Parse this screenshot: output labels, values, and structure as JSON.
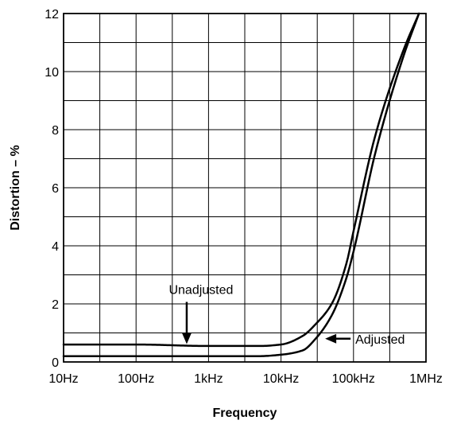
{
  "chart_data": {
    "type": "line",
    "title": "",
    "xlabel": "Frequency",
    "ylabel": "Distortion – %",
    "x_scale": "log",
    "xlim": [
      10,
      1000000
    ],
    "ylim": [
      0,
      12
    ],
    "grid": true,
    "x_ticks": [
      {
        "value": 10,
        "label": "10Hz"
      },
      {
        "value": 100,
        "label": "100Hz"
      },
      {
        "value": 1000,
        "label": "1kHz"
      },
      {
        "value": 10000,
        "label": "10kHz"
      },
      {
        "value": 100000,
        "label": "100kHz"
      },
      {
        "value": 1000000,
        "label": "1MHz"
      }
    ],
    "y_ticks": [
      {
        "value": 0,
        "label": "0"
      },
      {
        "value": 2,
        "label": "2"
      },
      {
        "value": 4,
        "label": "4"
      },
      {
        "value": 6,
        "label": "6"
      },
      {
        "value": 8,
        "label": "8"
      },
      {
        "value": 10,
        "label": "10"
      },
      {
        "value": 12,
        "label": "12"
      }
    ],
    "series": [
      {
        "name": "Unadjusted",
        "x": [
          10,
          100,
          1000,
          5000,
          10000,
          20000,
          30000,
          50000,
          80000,
          100000,
          200000,
          500000,
          800000
        ],
        "y": [
          0.6,
          0.6,
          0.55,
          0.55,
          0.6,
          0.9,
          1.3,
          2.0,
          3.4,
          4.5,
          7.8,
          10.8,
          12.0
        ]
      },
      {
        "name": "Adjusted",
        "x": [
          10,
          100,
          1000,
          5000,
          10000,
          20000,
          30000,
          50000,
          80000,
          100000,
          200000,
          500000,
          800000
        ],
        "y": [
          0.2,
          0.2,
          0.2,
          0.2,
          0.25,
          0.4,
          0.8,
          1.6,
          2.9,
          3.8,
          7.2,
          10.6,
          12.0
        ]
      }
    ],
    "annotations": [
      {
        "text": "Unadjusted",
        "series": "Unadjusted",
        "at_x": 500
      },
      {
        "text": "Adjusted",
        "series": "Adjusted",
        "at_x": 30000
      }
    ]
  }
}
